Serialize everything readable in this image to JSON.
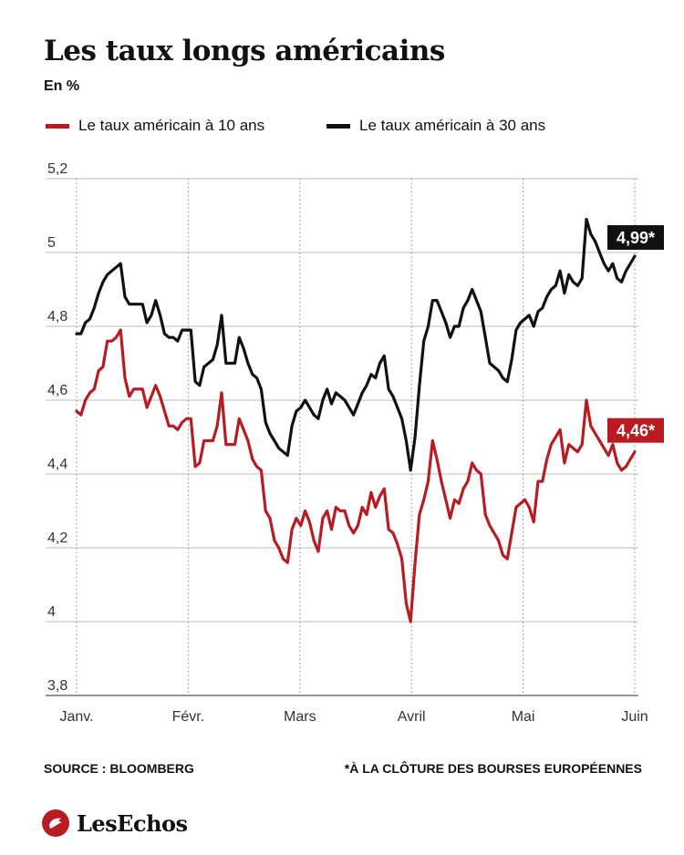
{
  "header": {
    "title": "Les taux longs américains",
    "subtitle": "En %"
  },
  "footer": {
    "source": "SOURCE : BLOOMBERG",
    "note": "*À LA CLÔTURE DES BOURSES EUROPÉENNES",
    "brand": "LesEchos"
  },
  "colors": {
    "red": "#b81c22",
    "black": "#111111",
    "grid": "#999999"
  },
  "chart_data": {
    "type": "line",
    "grid": true,
    "legend_placement": "top-left",
    "ylim": [
      3.8,
      5.2
    ],
    "y_ticks": [
      {
        "value": 3.8,
        "label": "3,8"
      },
      {
        "value": 4.0,
        "label": "4"
      },
      {
        "value": 4.2,
        "label": "4,2"
      },
      {
        "value": 4.4,
        "label": "4,4"
      },
      {
        "value": 4.6,
        "label": "4,6"
      },
      {
        "value": 4.8,
        "label": "4,8"
      },
      {
        "value": 5.0,
        "label": "5"
      },
      {
        "value": 5.2,
        "label": "5,2"
      }
    ],
    "x_labels": [
      "Janv.",
      "Févr.",
      "Mars",
      "Avril",
      "Mai",
      "Juin"
    ],
    "series": [
      {
        "name": "Le taux américain à 10 ans",
        "color": "#b81c22",
        "end_label": "4,46*",
        "values": [
          4.57,
          4.56,
          4.6,
          4.62,
          4.63,
          4.68,
          4.69,
          4.76,
          4.76,
          4.77,
          4.79,
          4.66,
          4.61,
          4.63,
          4.63,
          4.63,
          4.58,
          4.61,
          4.64,
          4.61,
          4.57,
          4.53,
          4.53,
          4.52,
          4.54,
          4.55,
          4.55,
          4.42,
          4.43,
          4.49,
          4.49,
          4.49,
          4.53,
          4.62,
          4.48,
          4.48,
          4.48,
          4.55,
          4.52,
          4.49,
          4.44,
          4.42,
          4.41,
          4.3,
          4.28,
          4.22,
          4.2,
          4.17,
          4.16,
          4.25,
          4.28,
          4.26,
          4.3,
          4.27,
          4.22,
          4.19,
          4.28,
          4.3,
          4.25,
          4.31,
          4.3,
          4.3,
          4.26,
          4.24,
          4.26,
          4.31,
          4.29,
          4.35,
          4.31,
          4.34,
          4.36,
          4.25,
          4.24,
          4.21,
          4.17,
          4.05,
          4.0,
          4.16,
          4.29,
          4.33,
          4.38,
          4.49,
          4.44,
          4.38,
          4.33,
          4.28,
          4.33,
          4.32,
          4.36,
          4.38,
          4.43,
          4.41,
          4.4,
          4.29,
          4.26,
          4.24,
          4.22,
          4.18,
          4.17,
          4.24,
          4.31,
          4.32,
          4.33,
          4.31,
          4.27,
          4.38,
          4.38,
          4.44,
          4.48,
          4.5,
          4.52,
          4.43,
          4.48,
          4.47,
          4.46,
          4.48,
          4.6,
          4.53,
          4.51,
          4.49,
          4.47,
          4.45,
          4.48,
          4.43,
          4.41,
          4.42,
          4.44,
          4.46
        ]
      },
      {
        "name": "Le taux américain à 30 ans",
        "color": "#111111",
        "end_label": "4,99*",
        "values": [
          4.78,
          4.78,
          4.81,
          4.82,
          4.85,
          4.89,
          4.92,
          4.94,
          4.95,
          4.96,
          4.97,
          4.88,
          4.86,
          4.86,
          4.86,
          4.86,
          4.81,
          4.83,
          4.87,
          4.83,
          4.78,
          4.77,
          4.77,
          4.76,
          4.79,
          4.79,
          4.79,
          4.65,
          4.64,
          4.69,
          4.7,
          4.71,
          4.75,
          4.83,
          4.7,
          4.7,
          4.7,
          4.77,
          4.74,
          4.7,
          4.67,
          4.66,
          4.63,
          4.54,
          4.51,
          4.49,
          4.47,
          4.46,
          4.45,
          4.53,
          4.57,
          4.58,
          4.6,
          4.58,
          4.56,
          4.55,
          4.6,
          4.63,
          4.59,
          4.62,
          4.61,
          4.6,
          4.58,
          4.56,
          4.59,
          4.62,
          4.64,
          4.67,
          4.66,
          4.7,
          4.72,
          4.63,
          4.61,
          4.58,
          4.55,
          4.49,
          4.41,
          4.5,
          4.64,
          4.76,
          4.8,
          4.87,
          4.87,
          4.84,
          4.81,
          4.77,
          4.8,
          4.8,
          4.85,
          4.87,
          4.9,
          4.87,
          4.84,
          4.77,
          4.7,
          4.69,
          4.68,
          4.66,
          4.65,
          4.71,
          4.79,
          4.81,
          4.82,
          4.83,
          4.8,
          4.84,
          4.85,
          4.88,
          4.9,
          4.91,
          4.95,
          4.89,
          4.94,
          4.92,
          4.91,
          4.93,
          5.09,
          5.05,
          5.03,
          5.0,
          4.97,
          4.95,
          4.97,
          4.93,
          4.92,
          4.95,
          4.97,
          4.99
        ]
      }
    ]
  }
}
